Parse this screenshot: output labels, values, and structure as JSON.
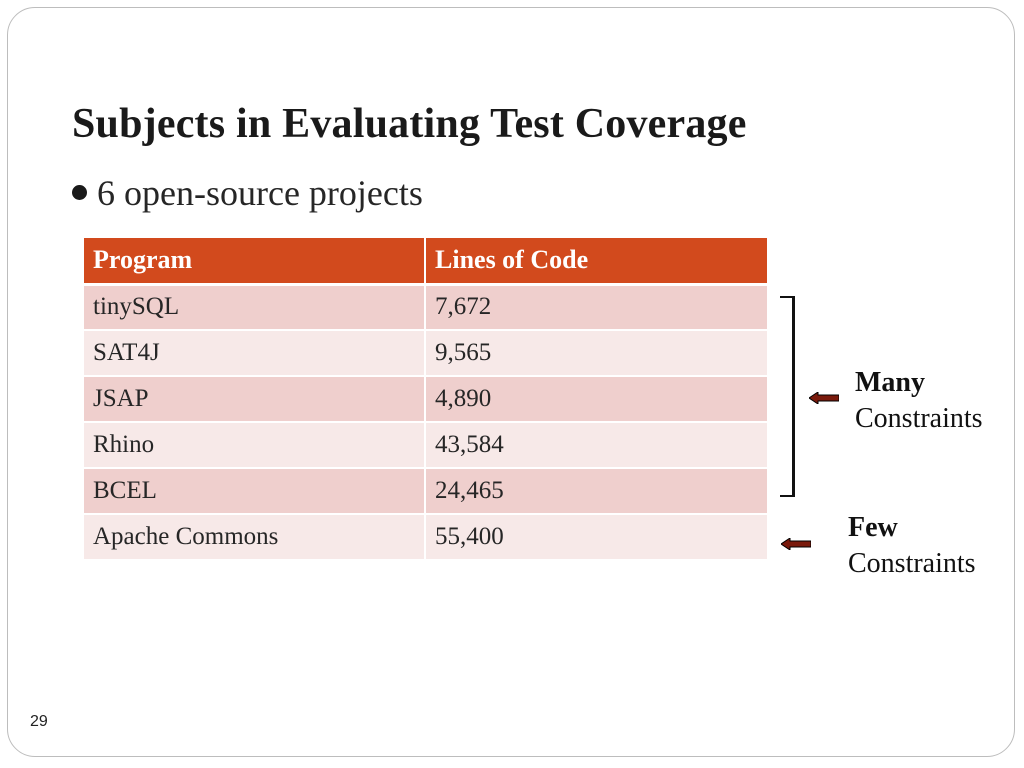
{
  "slide": {
    "title": "Subjects in Evaluating Test Coverage",
    "bullet": "6 open-source projects",
    "slide_number": "29"
  },
  "table": {
    "headers": [
      "Program",
      "Lines of Code"
    ],
    "rows": [
      [
        "tinySQL",
        "7,672"
      ],
      [
        "SAT4J",
        "9,565"
      ],
      [
        "JSAP",
        "4,890"
      ],
      [
        "Rhino",
        "43,584"
      ],
      [
        "BCEL",
        "24,465"
      ],
      [
        "Apache Commons",
        "55,400"
      ]
    ]
  },
  "annotations": {
    "many": {
      "strong": "Many",
      "normal": "Constraints"
    },
    "few": {
      "strong": "Few",
      "normal": "Constraints"
    }
  },
  "colors": {
    "header_bg": "#d24a1d",
    "row_odd": "#efcfcd",
    "row_even": "#f7e9e8",
    "arrow_fill": "#7a1a0c"
  },
  "icons": {
    "arrow": "left-arrow-icon",
    "bullet": "bullet-dot-icon",
    "bracket": "right-bracket"
  }
}
